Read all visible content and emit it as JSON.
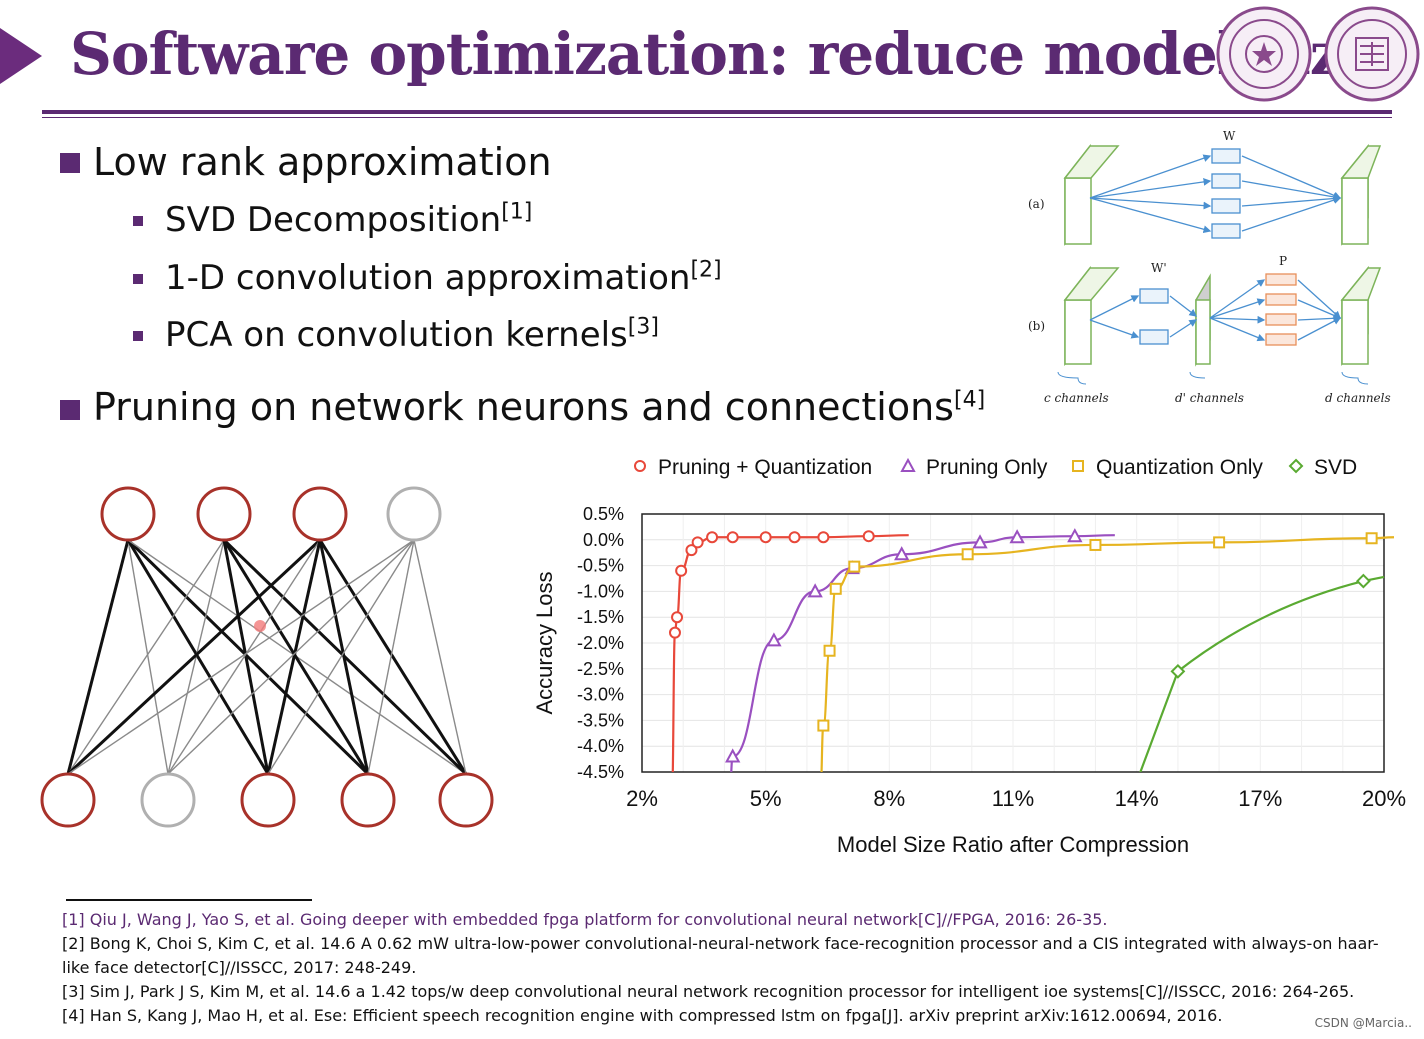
{
  "slide": {
    "title": "Software optimization: reduce model size",
    "watermark": "CSDN @Marcia.."
  },
  "bullets": {
    "low_rank": {
      "label": "Low rank approximation"
    },
    "items": [
      {
        "label": "SVD Decomposition",
        "ref": "[1]"
      },
      {
        "label": "1-D convolution approximation",
        "ref": "[2]"
      },
      {
        "label": "PCA on convolution kernels",
        "ref": "[3]"
      }
    ],
    "pruning": {
      "label": "Pruning on network neurons and connections",
      "ref": "[4]"
    }
  },
  "lowrank_figure": {
    "label_a": "(a)",
    "label_b": "(b)",
    "label_W": "W",
    "label_Wp": "W'",
    "label_P": "P",
    "label_c": "c channels",
    "label_dp": "d' channels",
    "label_d": "d channels",
    "colors": {
      "box": "#7db45a",
      "arrow": "#4a90d0",
      "p_box": "#e8905a"
    }
  },
  "network_figure": {
    "top_neurons": 4,
    "bottom_neurons": 5,
    "pruned_top": [
      3
    ],
    "pruned_bottom": [
      1
    ],
    "colors": {
      "active": "#a8322a",
      "pruned": "#b0b0b0"
    }
  },
  "chart_data": {
    "type": "line",
    "title": "",
    "xlabel": "Model Size Ratio after Compression",
    "ylabel": "Accuracy Loss",
    "xlim": [
      2,
      20
    ],
    "ylim": [
      -4.5,
      0.5
    ],
    "x_ticks": [
      "2%",
      "5%",
      "8%",
      "11%",
      "14%",
      "17%",
      "20%"
    ],
    "y_ticks": [
      "0.5%",
      "0.0%",
      "-0.5%",
      "-1.0%",
      "-1.5%",
      "-2.0%",
      "-2.5%",
      "-3.0%",
      "-3.5%",
      "-4.0%",
      "-4.5%"
    ],
    "grid": true,
    "legend_position": "top",
    "series": [
      {
        "name": "Pruning + Quantization",
        "marker": "circle",
        "color": "#e8483a",
        "x": [
          2.8,
          2.85,
          2.95,
          3.2,
          3.35,
          3.7,
          4.2,
          5.0,
          5.7,
          6.4,
          7.5
        ],
        "y": [
          -1.8,
          -1.5,
          -0.6,
          -0.2,
          -0.05,
          0.05,
          0.05,
          0.05,
          0.05,
          0.05,
          0.07
        ]
      },
      {
        "name": "Pruning Only",
        "marker": "triangle",
        "color": "#9a50c0",
        "x": [
          4.2,
          5.2,
          6.2,
          7.1,
          8.3,
          10.2,
          11.1,
          12.5
        ],
        "y": [
          -4.2,
          -1.95,
          -1.0,
          -0.55,
          -0.28,
          -0.05,
          0.05,
          0.07
        ]
      },
      {
        "name": "Quantization Only",
        "marker": "square",
        "color": "#e6b420",
        "x": [
          6.4,
          6.55,
          6.7,
          7.15,
          9.9,
          13.0,
          16.0,
          19.7
        ],
        "y": [
          -3.6,
          -2.15,
          -0.95,
          -0.52,
          -0.28,
          -0.1,
          -0.05,
          0.03
        ]
      },
      {
        "name": "SVD",
        "marker": "diamond",
        "color": "#5aaa32",
        "x": [
          15.0,
          19.5
        ],
        "y": [
          -2.55,
          -0.8
        ]
      }
    ]
  },
  "references": [
    "[1] Qiu J, Wang J, Yao S, et al. Going deeper with embedded fpga platform for convolutional neural network[C]//FPGA, 2016: 26-35.",
    "[2] Bong K, Choi S, Kim C, et al. 14.6 A 0.62 mW ultra-low-power convolutional-neural-network face-recognition processor and a CIS integrated with always-on haar-like face detector[C]//ISSCC, 2017: 248-249.",
    "[3] Sim J, Park J S, Kim M, et al. 14.6 a 1.42 tops/w deep convolutional neural network recognition processor for intelligent ioe systems[C]//ISSCC, 2016: 264-265.",
    "[4] Han S, Kang J, Mao H, et al. Ese: Efficient speech recognition engine with compressed lstm on fpga[J]. arXiv preprint arXiv:1612.00694, 2016."
  ]
}
